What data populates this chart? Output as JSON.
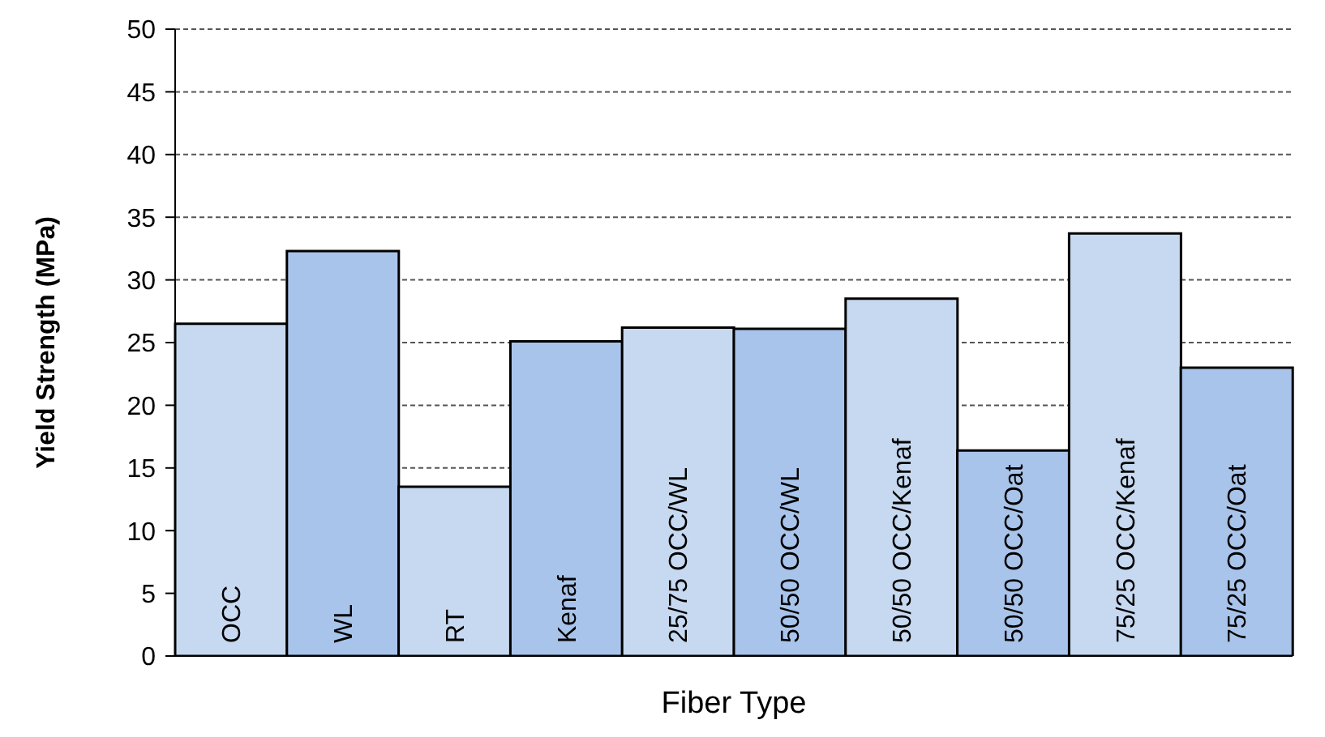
{
  "chart_data": {
    "type": "bar",
    "xlabel": "Fiber Type",
    "ylabel": "Yield Strength (MPa)",
    "categories": [
      "OCC",
      "WL",
      "RT",
      "Kenaf",
      "25/75 OCC/WL",
      "50/50 OCC/WL",
      "50/50 OCC/Kenaf",
      "50/50 OCC/Oat",
      "75/25 OCC/Kenaf",
      "75/25 OCC/Oat"
    ],
    "values": [
      26.5,
      32.3,
      13.5,
      25.1,
      26.2,
      26.1,
      28.5,
      16.4,
      33.7,
      23.0
    ],
    "colors": [
      "#c6d9f0",
      "#a9c4eb",
      "#c6d9f0",
      "#a9c4eb",
      "#c6d9f0",
      "#a9c4eb",
      "#c6d9f0",
      "#a9c4eb",
      "#c6d9f0",
      "#a9c4eb"
    ],
    "ylim": [
      0,
      50
    ],
    "yticks": [
      0,
      5,
      10,
      15,
      20,
      25,
      30,
      35,
      40,
      45,
      50
    ],
    "grid": "y"
  }
}
